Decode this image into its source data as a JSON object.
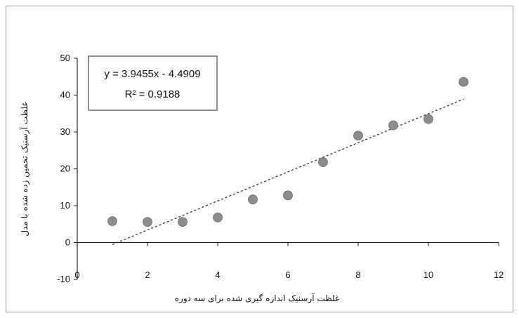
{
  "chart_data": {
    "type": "scatter",
    "title": "",
    "xlabel": "غلظت آرسنیک اندازه گیری شده برای سه دوره",
    "ylabel": "غلظت آرسنیک تخمین زده شده با مدل",
    "x": [
      1,
      2,
      3,
      4,
      5,
      6,
      7,
      8,
      9,
      10,
      11
    ],
    "y": [
      5.8,
      5.6,
      5.6,
      6.8,
      11.7,
      12.8,
      21.8,
      29.0,
      31.8,
      33.5,
      43.6
    ],
    "xlim": [
      0,
      12
    ],
    "ylim": [
      -10,
      50
    ],
    "xticks": [
      0,
      2,
      4,
      6,
      8,
      10,
      12
    ],
    "yticks": [
      -10,
      0,
      10,
      20,
      30,
      40,
      50
    ],
    "grid": false,
    "legend": "none",
    "marker_color": "#8c8c8c",
    "trendline": {
      "type": "linear",
      "slope": 3.9455,
      "intercept": -4.4909,
      "x_range": [
        1,
        11
      ],
      "style": "dashed",
      "color": "#333333",
      "equation_label": "y = 3.9455x - 4.4909",
      "r2_label": "R² = 0.9188"
    }
  }
}
